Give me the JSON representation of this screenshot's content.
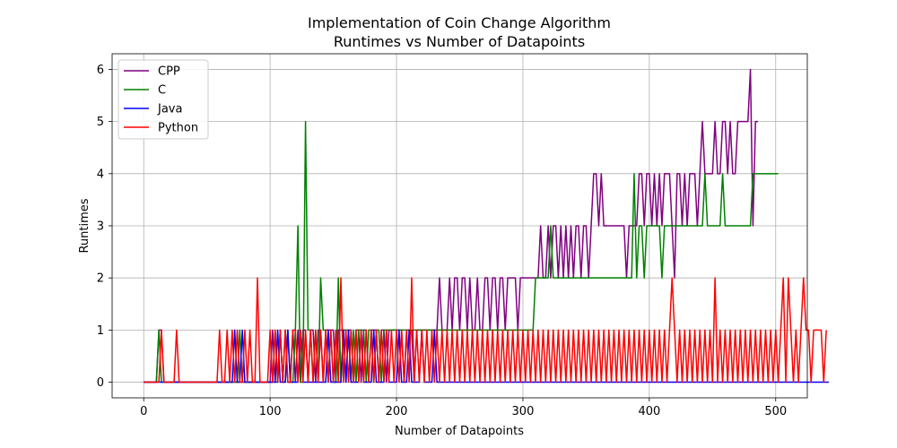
{
  "chart_data": {
    "type": "line",
    "title": "Implementation of Coin Change Algorithm",
    "subtitle": "Runtimes vs Number of Datapoints",
    "xlabel": "Number of Datapoints",
    "ylabel": "Runtimes",
    "xlim": [
      -25,
      525
    ],
    "ylim": [
      -0.3,
      6.3
    ],
    "xticks": [
      0,
      100,
      200,
      300,
      400,
      500
    ],
    "yticks": [
      0,
      1,
      2,
      3,
      4,
      5,
      6
    ],
    "grid": true,
    "legend": "upper-left",
    "x_start": 0,
    "x_step": 2,
    "series": [
      {
        "name": "CPP",
        "color": "#800080",
        "values": [
          0,
          0,
          0,
          0,
          0,
          0,
          1,
          1,
          0,
          0,
          0,
          0,
          0,
          0,
          0,
          0,
          0,
          0,
          0,
          0,
          0,
          0,
          0,
          0,
          0,
          0,
          0,
          0,
          0,
          0,
          0,
          0,
          0,
          0,
          0,
          0,
          0,
          0,
          0,
          0,
          0,
          0,
          0,
          0,
          0,
          0,
          0,
          0,
          0,
          0,
          0,
          1,
          0,
          0,
          1,
          0,
          1,
          0,
          0,
          1,
          0,
          1,
          0,
          1,
          1,
          0,
          1,
          1,
          0,
          1,
          1,
          0,
          1,
          1,
          1,
          1,
          0,
          1,
          1,
          1,
          0,
          1,
          1,
          0,
          1,
          1,
          0,
          1,
          1,
          0,
          1,
          1,
          1,
          0,
          1,
          1,
          0,
          1,
          1,
          1,
          1,
          1,
          1,
          0,
          1,
          1,
          1,
          0,
          1,
          1,
          1,
          1,
          1,
          1,
          1,
          1,
          1,
          2,
          1,
          1,
          1,
          2,
          1,
          2,
          2,
          1,
          2,
          2,
          1,
          2,
          1,
          1,
          2,
          1,
          1,
          2,
          2,
          1,
          2,
          2,
          1,
          2,
          2,
          1,
          2,
          2,
          2,
          2,
          1,
          2,
          2,
          2,
          2,
          2,
          2,
          2,
          2,
          3,
          2,
          2,
          3,
          2,
          3,
          3,
          2,
          3,
          2,
          3,
          2,
          3,
          2,
          3,
          3,
          2,
          3,
          3,
          2,
          3,
          4,
          4,
          3,
          4,
          3,
          3,
          3,
          3,
          3,
          3,
          3,
          3,
          3,
          2,
          3,
          3,
          3,
          3,
          4,
          4,
          3,
          4,
          4,
          3,
          4,
          3,
          4,
          3,
          4,
          4,
          4,
          3,
          2,
          4,
          4,
          3,
          4,
          3,
          4,
          4,
          4,
          3,
          4,
          5,
          4,
          4,
          4,
          4,
          5,
          4,
          4,
          5,
          5,
          4,
          5,
          4,
          4,
          5,
          5,
          5,
          5,
          5,
          6,
          3,
          5,
          5
        ]
      },
      {
        "name": "C",
        "color": "#008000",
        "values": [
          0,
          0,
          0,
          0,
          0,
          0,
          1,
          0,
          0,
          0,
          0,
          0,
          0,
          0,
          0,
          0,
          0,
          0,
          0,
          0,
          0,
          0,
          0,
          0,
          0,
          0,
          0,
          0,
          0,
          0,
          0,
          0,
          0,
          0,
          0,
          0,
          0,
          0,
          1,
          0,
          0,
          0,
          0,
          0,
          0,
          0,
          0,
          0,
          0,
          0,
          0,
          0,
          1,
          0,
          1,
          0,
          0,
          1,
          0,
          0,
          1,
          3,
          0,
          0,
          5,
          1,
          1,
          0,
          1,
          0,
          2,
          1,
          1,
          0,
          1,
          0,
          0,
          2,
          0,
          1,
          1,
          1,
          0,
          1,
          0,
          1,
          1,
          1,
          0,
          1,
          1,
          0,
          1,
          1,
          0,
          1,
          1,
          1,
          1,
          1,
          1,
          1,
          1,
          1,
          1,
          1,
          1,
          1,
          1,
          1,
          1,
          1,
          1,
          1,
          1,
          1,
          1,
          1,
          1,
          1,
          1,
          1,
          1,
          1,
          1,
          1,
          1,
          1,
          1,
          1,
          1,
          1,
          1,
          1,
          1,
          1,
          1,
          1,
          1,
          1,
          1,
          1,
          1,
          1,
          1,
          1,
          1,
          1,
          1,
          1,
          1,
          1,
          1,
          1,
          1,
          2,
          2,
          2,
          2,
          2,
          2,
          3,
          2,
          2,
          2,
          2,
          2,
          2,
          2,
          2,
          2,
          2,
          2,
          2,
          2,
          2,
          2,
          2,
          2,
          2,
          2,
          2,
          2,
          2,
          2,
          2,
          2,
          2,
          2,
          2,
          2,
          2,
          2,
          2,
          4,
          2,
          3,
          3,
          2,
          3,
          3,
          3,
          3,
          3,
          3,
          2,
          3,
          3,
          3,
          3,
          3,
          3,
          3,
          3,
          3,
          3,
          3,
          3,
          3,
          3,
          3,
          3,
          4,
          3,
          3,
          3,
          3,
          3,
          3,
          4,
          3,
          3,
          3,
          3,
          3,
          3,
          3,
          3,
          3,
          3,
          3,
          4,
          4,
          4,
          4,
          4,
          4,
          4,
          4,
          4,
          4,
          4
        ]
      },
      {
        "name": "Java",
        "color": "#0000ff",
        "values": [
          0,
          0,
          0,
          0,
          0,
          0,
          0,
          0,
          0,
          0,
          0,
          0,
          0,
          0,
          0,
          0,
          0,
          0,
          0,
          0,
          0,
          0,
          0,
          0,
          0,
          0,
          0,
          0,
          0,
          0,
          0,
          0,
          0,
          0,
          0,
          0,
          1,
          0,
          0,
          1,
          0,
          0,
          0,
          0,
          0,
          0,
          0,
          0,
          0,
          0,
          0,
          0,
          0,
          1,
          0,
          0,
          0,
          1,
          0,
          0,
          0,
          0,
          1,
          0,
          0,
          0,
          0,
          0,
          0,
          0,
          0,
          0,
          0,
          1,
          0,
          0,
          0,
          0,
          0,
          1,
          0,
          1,
          0,
          0,
          0,
          0,
          1,
          0,
          0,
          0,
          0,
          1,
          0,
          0,
          0,
          0,
          1,
          0,
          0,
          0,
          0,
          1,
          0,
          0,
          0,
          1,
          0,
          0,
          0,
          0,
          1,
          0,
          0,
          0,
          0,
          1,
          0,
          0,
          0,
          0,
          0,
          0,
          0,
          0,
          0,
          0,
          0,
          0,
          0,
          0,
          0,
          0,
          0,
          0,
          0,
          0,
          0,
          0,
          0,
          0,
          0,
          0,
          0,
          0,
          0,
          0,
          0,
          0,
          0,
          0,
          0,
          0,
          0,
          0,
          0,
          0,
          0,
          0,
          0,
          0,
          0,
          0,
          0,
          0,
          0,
          0,
          0,
          0,
          0,
          0,
          0,
          0,
          0,
          0,
          0,
          0,
          0,
          0,
          0,
          0,
          0,
          0,
          0,
          0,
          0,
          0,
          0,
          0,
          0,
          0,
          0,
          0,
          0,
          0,
          0,
          0,
          0,
          0,
          0,
          0,
          0,
          0,
          0,
          0,
          0,
          0,
          0,
          0,
          0,
          0,
          0,
          0,
          0,
          0,
          0,
          0,
          0,
          0,
          0,
          0,
          0,
          0,
          0,
          0,
          0,
          0,
          0,
          0,
          0,
          0,
          0,
          0,
          0,
          0,
          0,
          0,
          0,
          0,
          0,
          0,
          0,
          0,
          0,
          0,
          0,
          0,
          0,
          0,
          0,
          0,
          0,
          0,
          0,
          0,
          0,
          0,
          0,
          0,
          0,
          0,
          0,
          0,
          0,
          0,
          0,
          0,
          0,
          0,
          0,
          0,
          0,
          0
        ]
      },
      {
        "name": "Python",
        "color": "#ff0000",
        "values": [
          0,
          0,
          0,
          0,
          0,
          0,
          0,
          1,
          0,
          0,
          0,
          0,
          0,
          1,
          0,
          0,
          0,
          0,
          0,
          0,
          0,
          0,
          0,
          0,
          0,
          0,
          0,
          0,
          0,
          0,
          1,
          0,
          0,
          1,
          0,
          1,
          0,
          1,
          0,
          0,
          1,
          0,
          1,
          0,
          0,
          2,
          0,
          0,
          0,
          0,
          1,
          0,
          1,
          0,
          1,
          0,
          1,
          0,
          0,
          1,
          1,
          0,
          1,
          0,
          1,
          0,
          1,
          0,
          1,
          0,
          1,
          0,
          1,
          0,
          1,
          0,
          1,
          0,
          2,
          0,
          1,
          0,
          1,
          0,
          1,
          0,
          1,
          0,
          1,
          0,
          1,
          0,
          1,
          0,
          1,
          0,
          1,
          0,
          1,
          0,
          1,
          0,
          1,
          0,
          1,
          0,
          2,
          0,
          1,
          0,
          1,
          0,
          1,
          0,
          1,
          0,
          1,
          0,
          1,
          0,
          1,
          0,
          1,
          0,
          1,
          0,
          1,
          0,
          1,
          0,
          1,
          0,
          1,
          0,
          1,
          0,
          1,
          0,
          1,
          0,
          1,
          0,
          1,
          0,
          1,
          0,
          1,
          0,
          1,
          0,
          1,
          0,
          1,
          0,
          1,
          0,
          1,
          0,
          1,
          0,
          1,
          0,
          1,
          0,
          1,
          0,
          1,
          0,
          1,
          0,
          1,
          0,
          1,
          0,
          1,
          0,
          1,
          0,
          1,
          0,
          1,
          0,
          1,
          0,
          1,
          0,
          1,
          0,
          1,
          0,
          1,
          0,
          1,
          0,
          1,
          0,
          1,
          0,
          1,
          0,
          1,
          0,
          1,
          0,
          1,
          0,
          1,
          0,
          1,
          2,
          1,
          0,
          1,
          0,
          1,
          0,
          1,
          0,
          1,
          0,
          1,
          0,
          1,
          0,
          1,
          0,
          2,
          0,
          1,
          0,
          1,
          0,
          1,
          0,
          1,
          0,
          1,
          0,
          1,
          0,
          1,
          0,
          1,
          0,
          1,
          0,
          1,
          0,
          1,
          0,
          1,
          0,
          1,
          2,
          0,
          2,
          1,
          0,
          1,
          0,
          1,
          2,
          1,
          1,
          0,
          1,
          1,
          1,
          1,
          0,
          1
        ]
      }
    ]
  }
}
